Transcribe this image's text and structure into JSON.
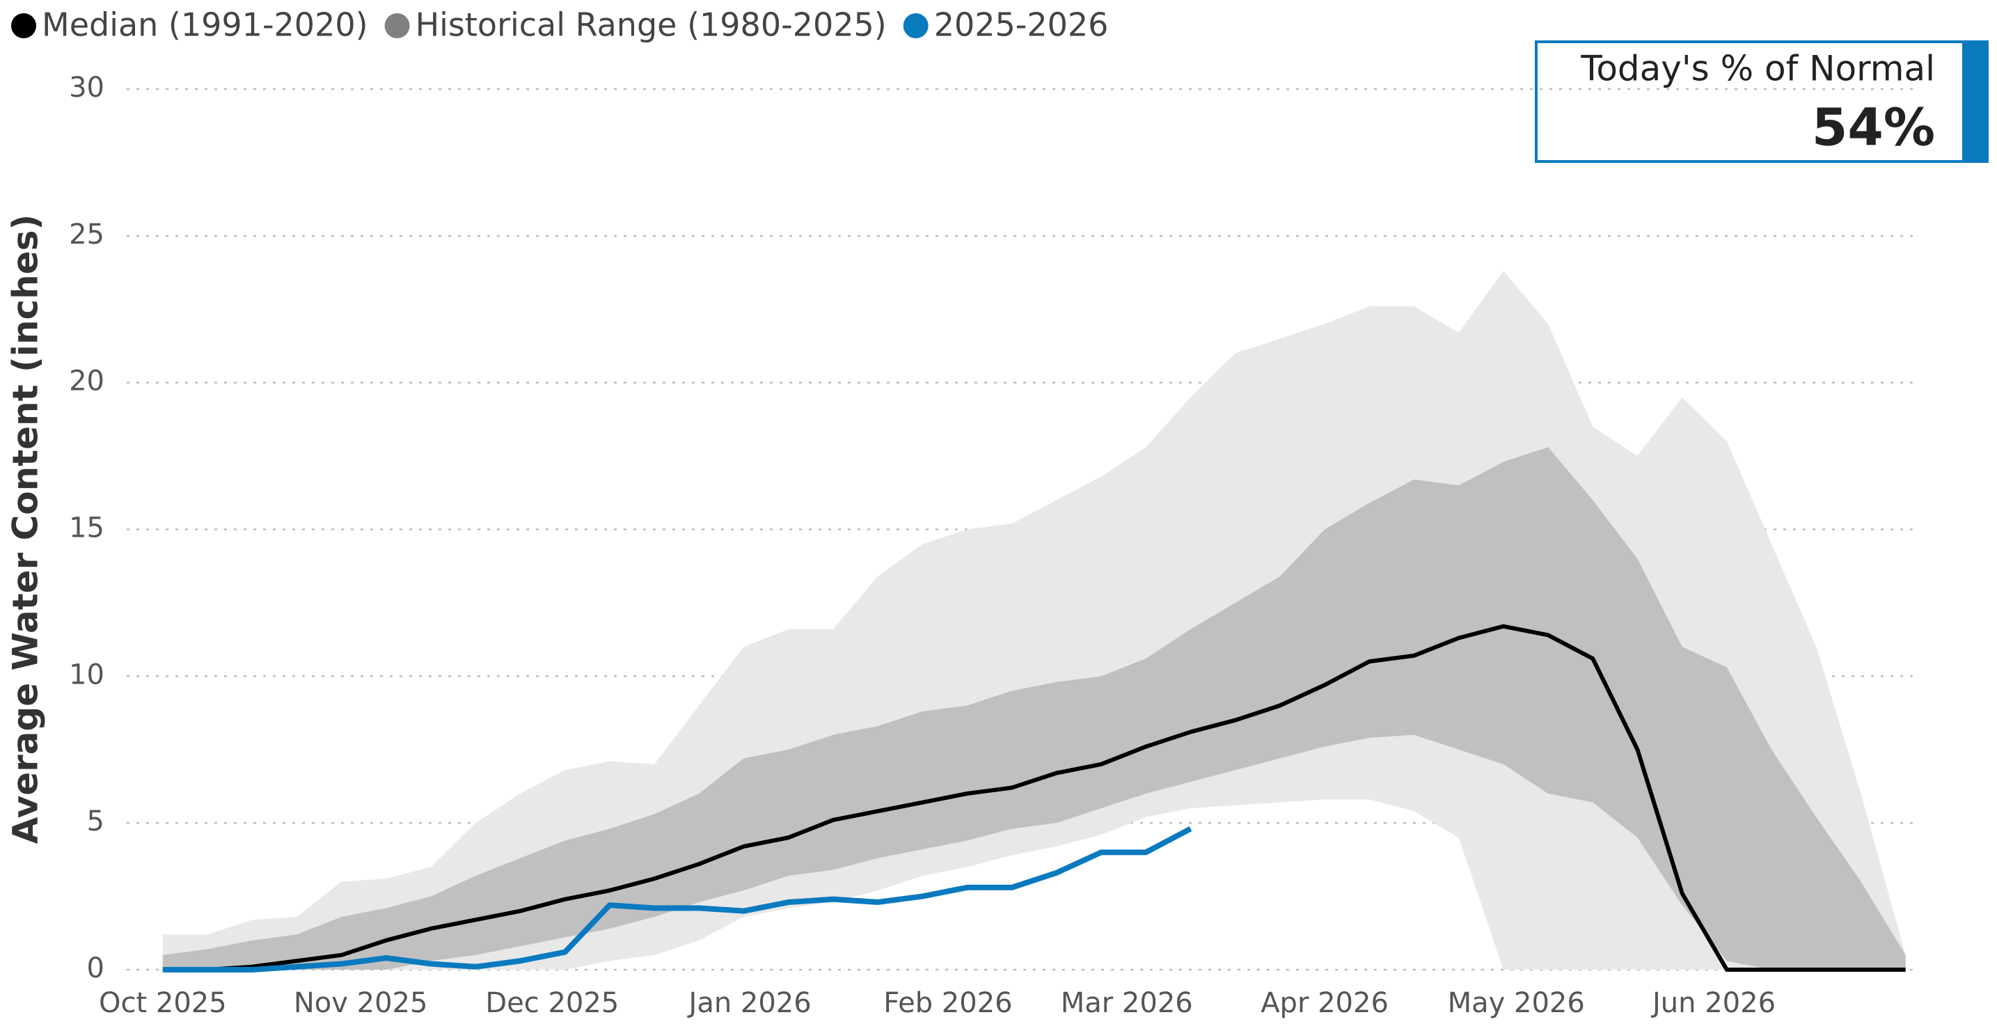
{
  "chart_data": {
    "type": "line",
    "y_label": "Average Water Content (inches)",
    "x": [
      0,
      7,
      14,
      21,
      28,
      35,
      42,
      49,
      56,
      63,
      70,
      77,
      84,
      91,
      98,
      105,
      112,
      119,
      126,
      133,
      140,
      147,
      154,
      161,
      168,
      175,
      182,
      189,
      196,
      203,
      210,
      217,
      224,
      231,
      238,
      245,
      252,
      259,
      266,
      273
    ],
    "xlim": [
      -5,
      275
    ],
    "xticks": [
      {
        "value": 0,
        "label": "Oct 2025"
      },
      {
        "value": 31,
        "label": "Nov 2025"
      },
      {
        "value": 61,
        "label": "Dec 2025"
      },
      {
        "value": 92,
        "label": "Jan 2026"
      },
      {
        "value": 123,
        "label": "Feb 2026"
      },
      {
        "value": 151,
        "label": "Mar 2026"
      },
      {
        "value": 182,
        "label": "Apr 2026"
      },
      {
        "value": 212,
        "label": "May 2026"
      },
      {
        "value": 243,
        "label": "Jun 2026"
      }
    ],
    "ylim": [
      0,
      30
    ],
    "yticks": [
      0,
      5,
      10,
      15,
      20,
      25,
      30
    ],
    "grid": true,
    "series": [
      {
        "name": "Median (1991-2020)",
        "color": "#000000",
        "values": [
          0,
          0,
          0.1,
          0.3,
          0.5,
          1.0,
          1.4,
          1.7,
          2.0,
          2.4,
          2.7,
          3.1,
          3.6,
          4.2,
          4.5,
          5.1,
          5.4,
          5.7,
          6.0,
          6.2,
          6.7,
          7.0,
          7.6,
          8.1,
          8.5,
          9.0,
          9.7,
          10.5,
          10.7,
          11.3,
          11.7,
          11.4,
          10.6,
          7.5,
          2.6,
          0,
          0,
          0,
          0,
          0
        ]
      },
      {
        "name": "Historical Range (1980-2025)",
        "color": "#808080",
        "bands": [
          {
            "color": "#e8e8e8",
            "low": [
              0,
              0,
              0,
              0,
              0,
              0,
              0,
              0,
              0,
              0,
              0.3,
              0.5,
              1.0,
              1.8,
              2.1,
              2.3,
              2.7,
              3.2,
              3.5,
              3.9,
              4.2,
              4.6,
              5.2,
              5.5,
              5.6,
              5.7,
              5.8,
              5.8,
              5.4,
              4.5,
              0,
              0,
              0,
              0,
              0,
              0,
              0,
              0,
              0,
              0
            ],
            "high": [
              1.2,
              1.2,
              1.7,
              1.8,
              3.0,
              3.1,
              3.5,
              5.0,
              6.0,
              6.8,
              7.1,
              7.0,
              9.0,
              11.0,
              11.6,
              11.6,
              13.4,
              14.5,
              15.0,
              15.2,
              16.0,
              16.8,
              17.8,
              19.5,
              21.0,
              21.5,
              22.0,
              22.6,
              22.6,
              21.7,
              23.8,
              22.0,
              18.5,
              17.5,
              19.5,
              18.0,
              14.5,
              11.0,
              6.0,
              0.5
            ]
          },
          {
            "color": "#c0c0c0",
            "low": [
              0,
              0,
              0,
              0,
              0,
              0,
              0.3,
              0.5,
              0.8,
              1.1,
              1.4,
              1.8,
              2.3,
              2.7,
              3.2,
              3.4,
              3.8,
              4.1,
              4.4,
              4.8,
              5.0,
              5.5,
              6.0,
              6.4,
              6.8,
              7.2,
              7.6,
              7.9,
              8.0,
              7.5,
              7.0,
              6.0,
              5.7,
              4.5,
              2.2,
              0.3,
              0,
              0,
              0,
              0
            ],
            "high": [
              0.5,
              0.7,
              1.0,
              1.2,
              1.8,
              2.1,
              2.5,
              3.2,
              3.8,
              4.4,
              4.8,
              5.3,
              6.0,
              7.2,
              7.5,
              8.0,
              8.3,
              8.8,
              9.0,
              9.5,
              9.8,
              10.0,
              10.6,
              11.6,
              12.5,
              13.4,
              15.0,
              15.9,
              16.7,
              16.5,
              17.3,
              17.8,
              16.0,
              14.0,
              11.0,
              10.3,
              7.5,
              5.2,
              3.0,
              0.5
            ]
          }
        ]
      },
      {
        "name": "2025-2026",
        "color": "#0a7abf",
        "values": [
          0,
          0,
          0,
          0.1,
          0.2,
          0.4,
          0.2,
          0.1,
          0.3,
          0.6,
          2.2,
          2.1,
          2.1,
          2.0,
          2.3,
          2.4,
          2.3,
          2.5,
          2.8,
          2.8,
          3.3,
          4.0,
          4.0,
          4.8,
          null,
          null,
          null,
          null,
          null,
          null,
          null,
          null,
          null,
          null,
          null,
          null,
          null,
          null,
          null,
          null
        ]
      }
    ]
  },
  "indicator": {
    "title": "Today's % of Normal",
    "value": 54,
    "value_label": "54%"
  }
}
